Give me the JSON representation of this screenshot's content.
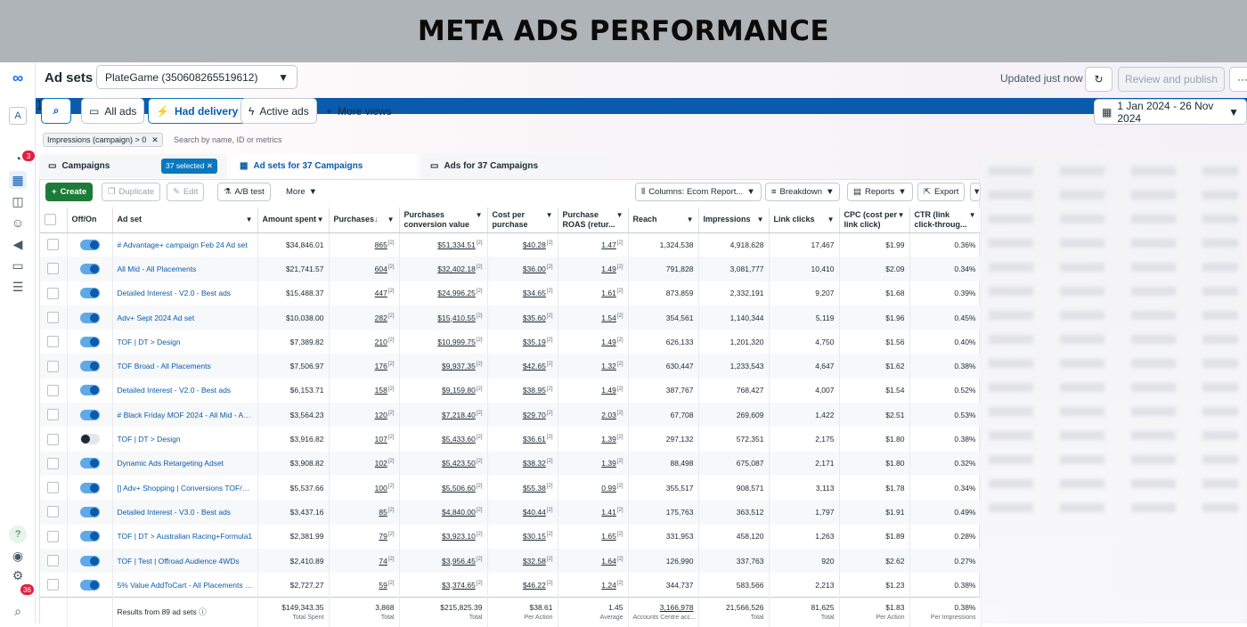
{
  "banner": {
    "title": "META ADS PERFORMANCE"
  },
  "header": {
    "title": "Ad sets",
    "account": "PlateGame (350608265519612)",
    "updated": "Updated just now",
    "review_label": "Review and publish",
    "more_label": "···"
  },
  "nav": {
    "search_badge": "1",
    "all_ads": "All ads",
    "had_delivery": "Had delivery",
    "active_ads": "Active ads",
    "more_views": "More views",
    "date_range": "1 Jan 2024 - 26 Nov 2024"
  },
  "rail": {
    "badge_top": "3",
    "badge_bottom": "36"
  },
  "filter": {
    "chip": "Impressions (campaign) > 0",
    "search_placeholder": "Search by name, ID or metrics"
  },
  "tabs": {
    "campaigns": "Campaigns",
    "selected": "37 selected",
    "adsets": "Ad sets for 37 Campaigns",
    "ads": "Ads for 37 Campaigns"
  },
  "toolbar": {
    "create": "Create",
    "duplicate": "Duplicate",
    "edit": "Edit",
    "ab_test": "A/B test",
    "more": "More",
    "columns": "Columns: Ecom Report...",
    "breakdown": "Breakdown",
    "reports": "Reports",
    "export": "Export"
  },
  "columns": [
    "Off/On",
    "Ad set",
    "Amount spent",
    "Purchases",
    "Purchases conversion value",
    "Cost per purchase",
    "Purchase ROAS (retur...",
    "Reach",
    "Impressions",
    "Link clicks",
    "CPC (cost per link click)",
    "CTR (link click-throug..."
  ],
  "rows": [
    {
      "on": true,
      "name": "# Advantage+ campaign Feb 24 Ad set",
      "spent": "$34,846.01",
      "purchases": "865",
      "conv": "$51,334.51",
      "cpp": "$40.28",
      "roas": "1.47",
      "reach": "1,324,538",
      "impr": "4,918,628",
      "clicks": "17,467",
      "cpc": "$1.99",
      "ctr": "0.36%"
    },
    {
      "on": true,
      "name": "All Mid - All Placements",
      "spent": "$21,741.57",
      "purchases": "604",
      "conv": "$32,402.18",
      "cpp": "$36.00",
      "roas": "1.49",
      "reach": "791,828",
      "impr": "3,081,777",
      "clicks": "10,410",
      "cpc": "$2.09",
      "ctr": "0.34%"
    },
    {
      "on": true,
      "name": "Detailed Interest - V2.0 - Best ads",
      "spent": "$15,488.37",
      "purchases": "447",
      "conv": "$24,996.25",
      "cpp": "$34.65",
      "roas": "1.61",
      "reach": "873,859",
      "impr": "2,332,191",
      "clicks": "9,207",
      "cpc": "$1.68",
      "ctr": "0.39%"
    },
    {
      "on": true,
      "name": "Adv+ Sept 2024 Ad set",
      "spent": "$10,038.00",
      "purchases": "282",
      "conv": "$15,410.55",
      "cpp": "$35.60",
      "roas": "1.54",
      "reach": "354,561",
      "impr": "1,140,344",
      "clicks": "5,119",
      "cpc": "$1.96",
      "ctr": "0.45%"
    },
    {
      "on": true,
      "name": "TOF | DT > Design",
      "spent": "$7,389.82",
      "purchases": "210",
      "conv": "$10,999.75",
      "cpp": "$35.19",
      "roas": "1.49",
      "reach": "626,133",
      "impr": "1,201,320",
      "clicks": "4,750",
      "cpc": "$1.56",
      "ctr": "0.40%"
    },
    {
      "on": true,
      "name": "TOF Broad - All Placements",
      "spent": "$7,506.97",
      "purchases": "176",
      "conv": "$9,937.35",
      "cpp": "$42.65",
      "roas": "1.32",
      "reach": "630,447",
      "impr": "1,233,543",
      "clicks": "4,647",
      "cpc": "$1.62",
      "ctr": "0.38%"
    },
    {
      "on": true,
      "name": "Detailed Interest - V2.0 - Best ads",
      "spent": "$6,153.71",
      "purchases": "158",
      "conv": "$9,159.80",
      "cpp": "$38.95",
      "roas": "1.49",
      "reach": "387,767",
      "impr": "768,427",
      "clicks": "4,007",
      "cpc": "$1.54",
      "ctr": "0.52%"
    },
    {
      "on": true,
      "name": "# Black Friday MOF 2024 - All Mid - All...",
      "spent": "$3,564.23",
      "purchases": "120",
      "conv": "$7,218.40",
      "cpp": "$29.70",
      "roas": "2.03",
      "reach": "67,708",
      "impr": "269,609",
      "clicks": "1,422",
      "cpc": "$2.51",
      "ctr": "0.53%"
    },
    {
      "on": false,
      "name": "TOF | DT > Design",
      "spent": "$3,916.82",
      "purchases": "107",
      "conv": "$5,433.60",
      "cpp": "$36.61",
      "roas": "1.39",
      "reach": "297,132",
      "impr": "572,351",
      "clicks": "2,175",
      "cpc": "$1.80",
      "ctr": "0.38%"
    },
    {
      "on": true,
      "name": "Dynamic Ads Retargeting Adset",
      "spent": "$3,908.82",
      "purchases": "102",
      "conv": "$5,423.50",
      "cpp": "$38.32",
      "roas": "1.39",
      "reach": "88,498",
      "impr": "675,087",
      "clicks": "2,171",
      "cpc": "$1.80",
      "ctr": "0.32%"
    },
    {
      "on": true,
      "name": "[] Adv+ Shopping | Conversions TOF/B...",
      "spent": "$5,537.66",
      "purchases": "100",
      "conv": "$5,506.60",
      "cpp": "$55.38",
      "roas": "0.99",
      "reach": "355,517",
      "impr": "908,571",
      "clicks": "3,113",
      "cpc": "$1.78",
      "ctr": "0.34%"
    },
    {
      "on": true,
      "name": "Detailed Interest - V3.0 - Best ads",
      "spent": "$3,437.16",
      "purchases": "85",
      "conv": "$4,840.00",
      "cpp": "$40.44",
      "roas": "1.41",
      "reach": "175,763",
      "impr": "363,512",
      "clicks": "1,797",
      "cpc": "$1.91",
      "ctr": "0.49%"
    },
    {
      "on": true,
      "name": "TOF | DT > Australian Racing+Formula1",
      "spent": "$2,381.99",
      "purchases": "79",
      "conv": "$3,923.10",
      "cpp": "$30.15",
      "roas": "1.65",
      "reach": "331,953",
      "impr": "458,120",
      "clicks": "1,263",
      "cpc": "$1.89",
      "ctr": "0.28%"
    },
    {
      "on": true,
      "name": "TOF | Test | Offroad Audience 4WDs",
      "spent": "$2,410.89",
      "purchases": "74",
      "conv": "$3,956.45",
      "cpp": "$32.58",
      "roas": "1.64",
      "reach": "126,990",
      "impr": "337,763",
      "clicks": "920",
      "cpc": "$2.62",
      "ctr": "0.27%"
    },
    {
      "on": true,
      "name": "5% Value AddToCart - All Placements e...",
      "spent": "$2,727.27",
      "purchases": "59",
      "conv": "$3,374.65",
      "cpp": "$46.22",
      "roas": "1.24",
      "reach": "344,737",
      "impr": "583,566",
      "clicks": "2,213",
      "cpc": "$1.23",
      "ctr": "0.38%"
    }
  ],
  "totals": {
    "label": "Results from 89 ad sets",
    "spent": "$149,343.35",
    "spent_sub": "Total Spent",
    "purchases": "3,868",
    "purchases_sub": "Total",
    "conv": "$215,825.39",
    "conv_sub": "Total",
    "cpp": "$38.61",
    "cpp_sub": "Per Action",
    "roas": "1.45",
    "roas_sub": "Average",
    "reach": "3,166,978",
    "reach_sub": "Accounts Centre acc...",
    "impr": "21,566,526",
    "impr_sub": "Total",
    "clicks": "81,625",
    "clicks_sub": "Total",
    "cpc": "$1.83",
    "cpc_sub": "Per Action",
    "ctr": "0.38%",
    "ctr_sub": "Per Impressions"
  },
  "colors": {
    "accent": "#0a5bad",
    "create": "#1d7a38",
    "badge": "#e41e3f"
  }
}
